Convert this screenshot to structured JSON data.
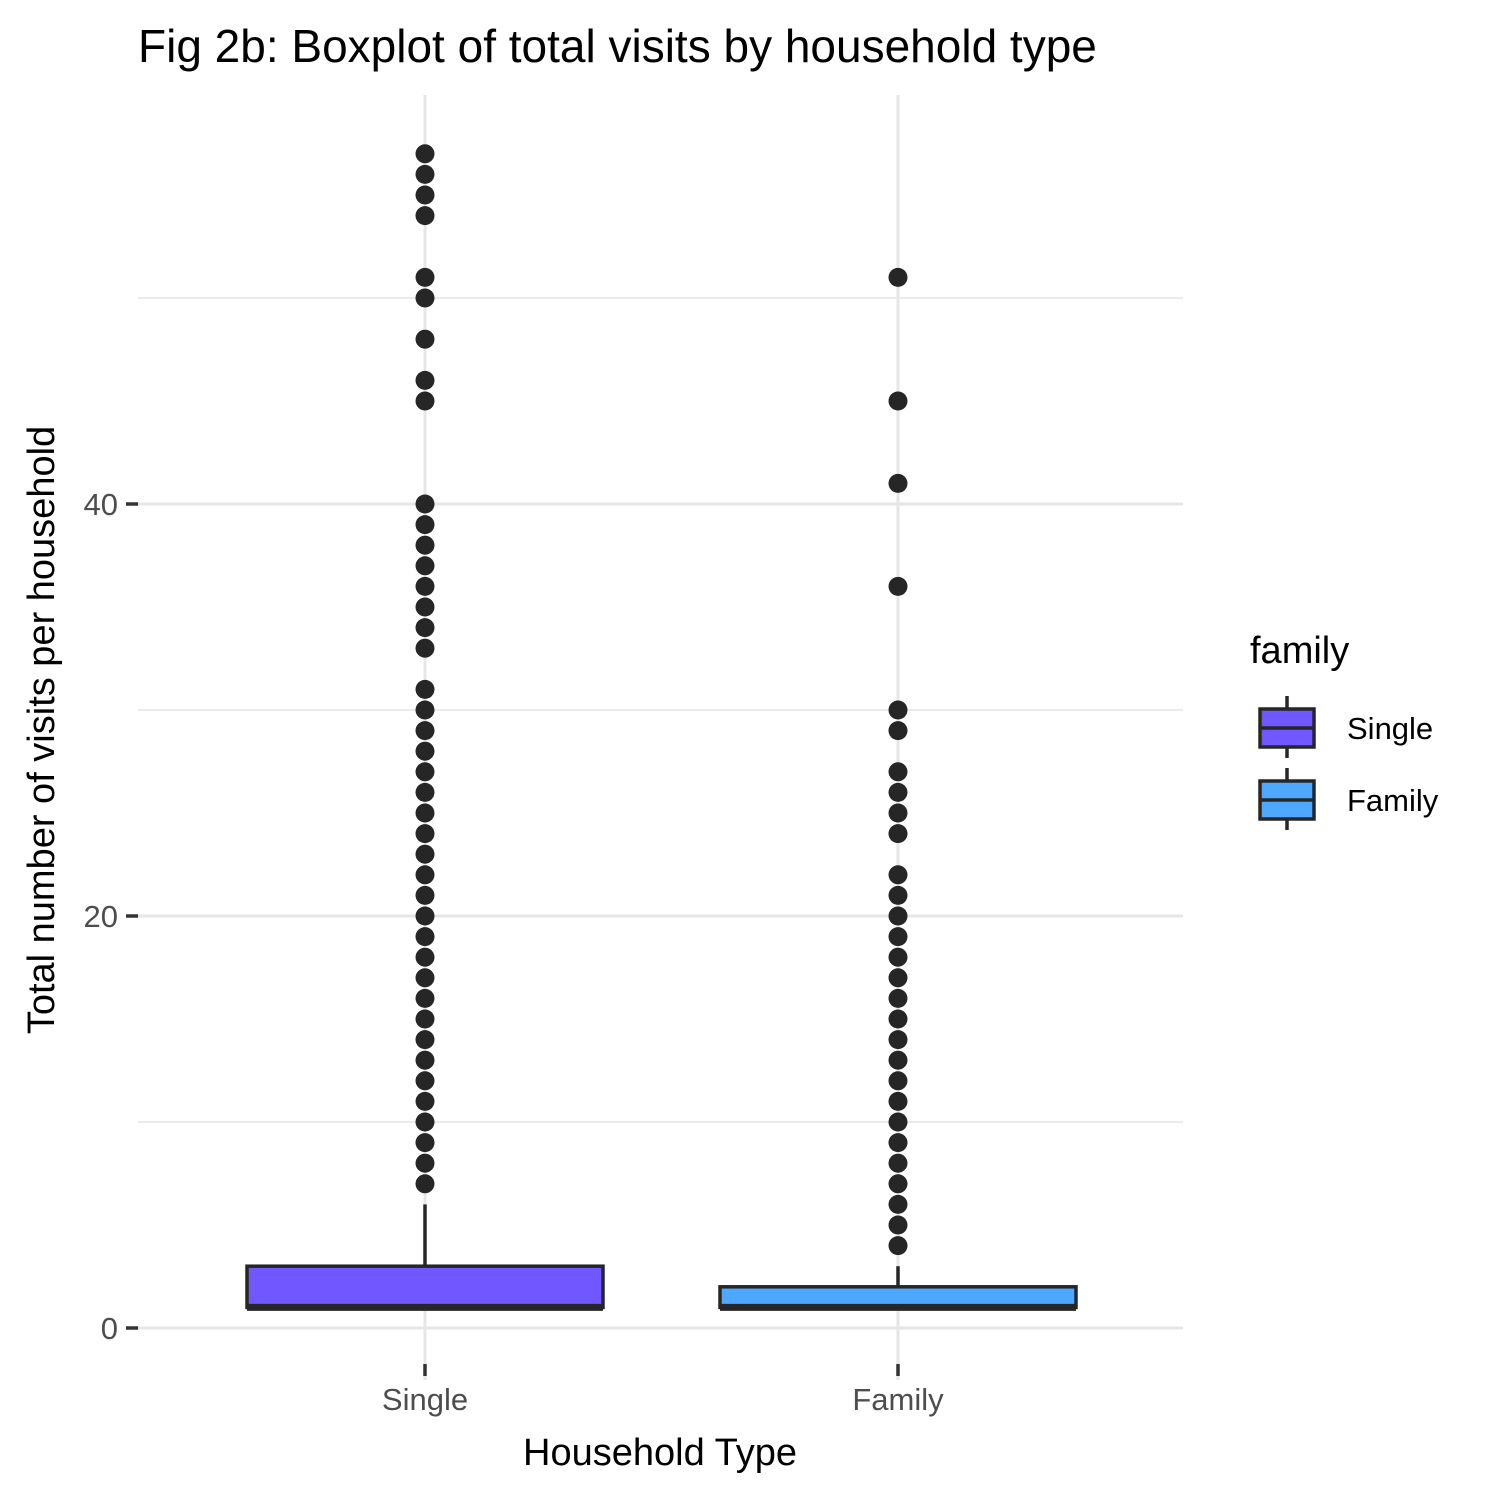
{
  "chart_data": {
    "type": "boxplot",
    "title": "Fig 2b: Boxplot of total visits by household type",
    "xlabel": "Household Type",
    "ylabel": "Total number of visits per household",
    "categories": [
      "Single",
      "Family"
    ],
    "ylim": [
      -2.5,
      60
    ],
    "y_ticks": [
      0,
      20,
      40
    ],
    "y_tick_labels": [
      "0",
      "20",
      "40"
    ],
    "grid": true,
    "legend": {
      "title": "family",
      "placement": "right",
      "entries": [
        "Single",
        "Family"
      ]
    },
    "series": [
      {
        "name": "Single",
        "color": "#7057FF",
        "min": 1,
        "q1": 1,
        "median": 1,
        "q3": 3,
        "whisker_low": 1,
        "whisker_high": 6,
        "outliers": [
          7,
          8,
          9,
          10,
          11,
          12,
          13,
          14,
          15,
          16,
          17,
          18,
          19,
          20,
          21,
          22,
          23,
          24,
          25,
          26,
          27,
          28,
          29,
          30,
          31,
          33,
          34,
          35,
          36,
          37,
          38,
          39,
          40,
          45,
          46,
          48,
          50,
          51,
          54,
          55,
          56,
          57
        ]
      },
      {
        "name": "Family",
        "color": "#4FA8FF",
        "min": 1,
        "q1": 1,
        "median": 1,
        "q3": 2,
        "whisker_low": 1,
        "whisker_high": 3,
        "outliers": [
          4,
          5,
          6,
          7,
          8,
          9,
          10,
          11,
          12,
          13,
          14,
          15,
          16,
          17,
          18,
          19,
          20,
          21,
          22,
          24,
          25,
          26,
          27,
          29,
          30,
          36,
          41,
          45,
          51
        ]
      }
    ]
  }
}
